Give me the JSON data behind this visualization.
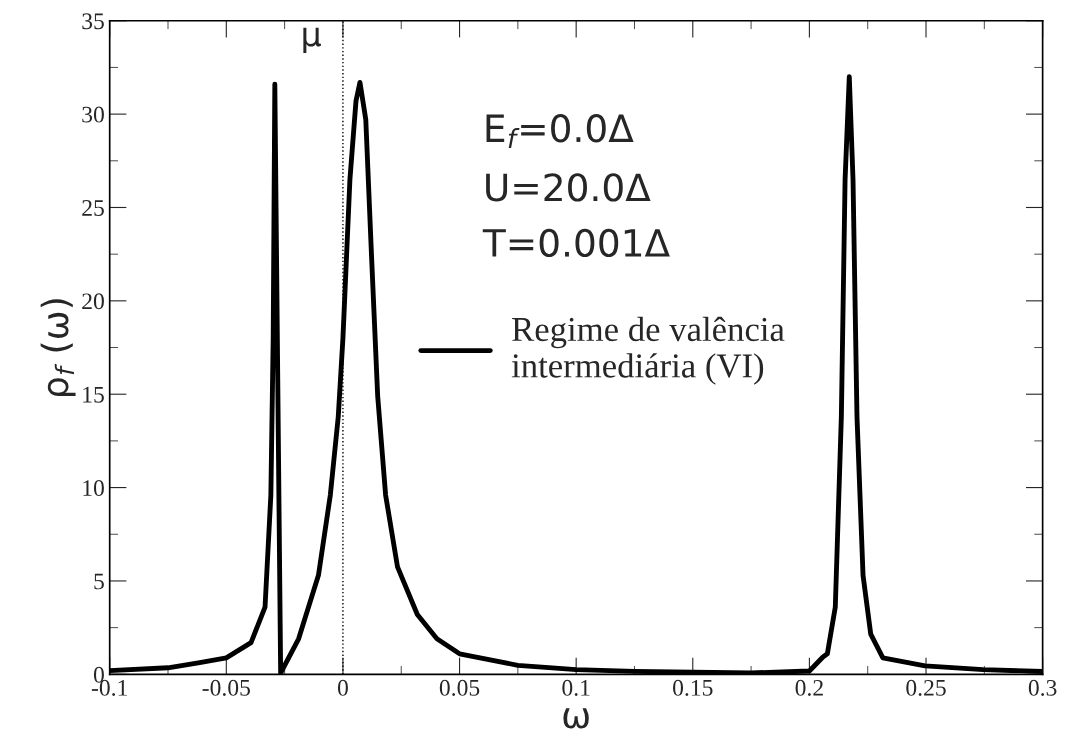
{
  "chart_data": {
    "type": "line",
    "xlabel": "ω",
    "ylabel": "ρ$_{f}$ (ω)",
    "x": [
      -0.1,
      -0.075,
      -0.0614,
      -0.05,
      -0.0394,
      -0.0334,
      -0.0309,
      -0.0299,
      -0.0292,
      -0.0267,
      -0.019,
      -0.0105,
      -0.0054,
      -0.002,
      0.0,
      0.003,
      0.0056,
      0.0073,
      0.0098,
      0.0123,
      0.0149,
      0.0183,
      0.0234,
      0.0319,
      0.0403,
      0.05,
      0.075,
      0.1,
      0.125,
      0.15,
      0.175,
      0.2,
      0.2058,
      0.2077,
      0.2111,
      0.2137,
      0.2153,
      0.2171,
      0.2187,
      0.2204,
      0.223,
      0.2263,
      0.2315,
      0.2496,
      0.2745,
      0.3
    ],
    "series": [
      {
        "name": "Regime de valência\nintermediária (VI)",
        "color": "#000000",
        "values": [
          0.2,
          0.35,
          0.63,
          0.88,
          1.7,
          3.6,
          9.6,
          18,
          31.6,
          0.07,
          1.9,
          5.3,
          9.6,
          13.8,
          18,
          26.5,
          30.7,
          31.7,
          29.7,
          22.3,
          14.9,
          9.6,
          5.75,
          3.2,
          1.9,
          1.1,
          0.48,
          0.25,
          0.16,
          0.11,
          0.07,
          0.18,
          0.93,
          1.1,
          3.6,
          13.8,
          26.5,
          32,
          26.5,
          13.8,
          5.3,
          2.15,
          0.88,
          0.45,
          0.25,
          0.15
        ]
      }
    ],
    "xlim": [
      -0.1,
      0.3
    ],
    "xticks": [
      -0.1,
      -0.05,
      0,
      0.05,
      0.1,
      0.15,
      0.2,
      0.25,
      0.3
    ],
    "ylim": [
      0,
      35
    ],
    "yticks": [
      0,
      5,
      10,
      15,
      20,
      25,
      30,
      35
    ],
    "ref_lines": [
      {
        "axis": "x",
        "value": 0,
        "label": "μ",
        "color": "#000000",
        "line_style": "dotted"
      }
    ],
    "annotations": [
      "E$_{f}$=0.0Δ",
      "U=20.0Δ",
      "T=0.001Δ"
    ],
    "legend": "right",
    "grid": false,
    "marker": "none",
    "line_style": "solid"
  }
}
